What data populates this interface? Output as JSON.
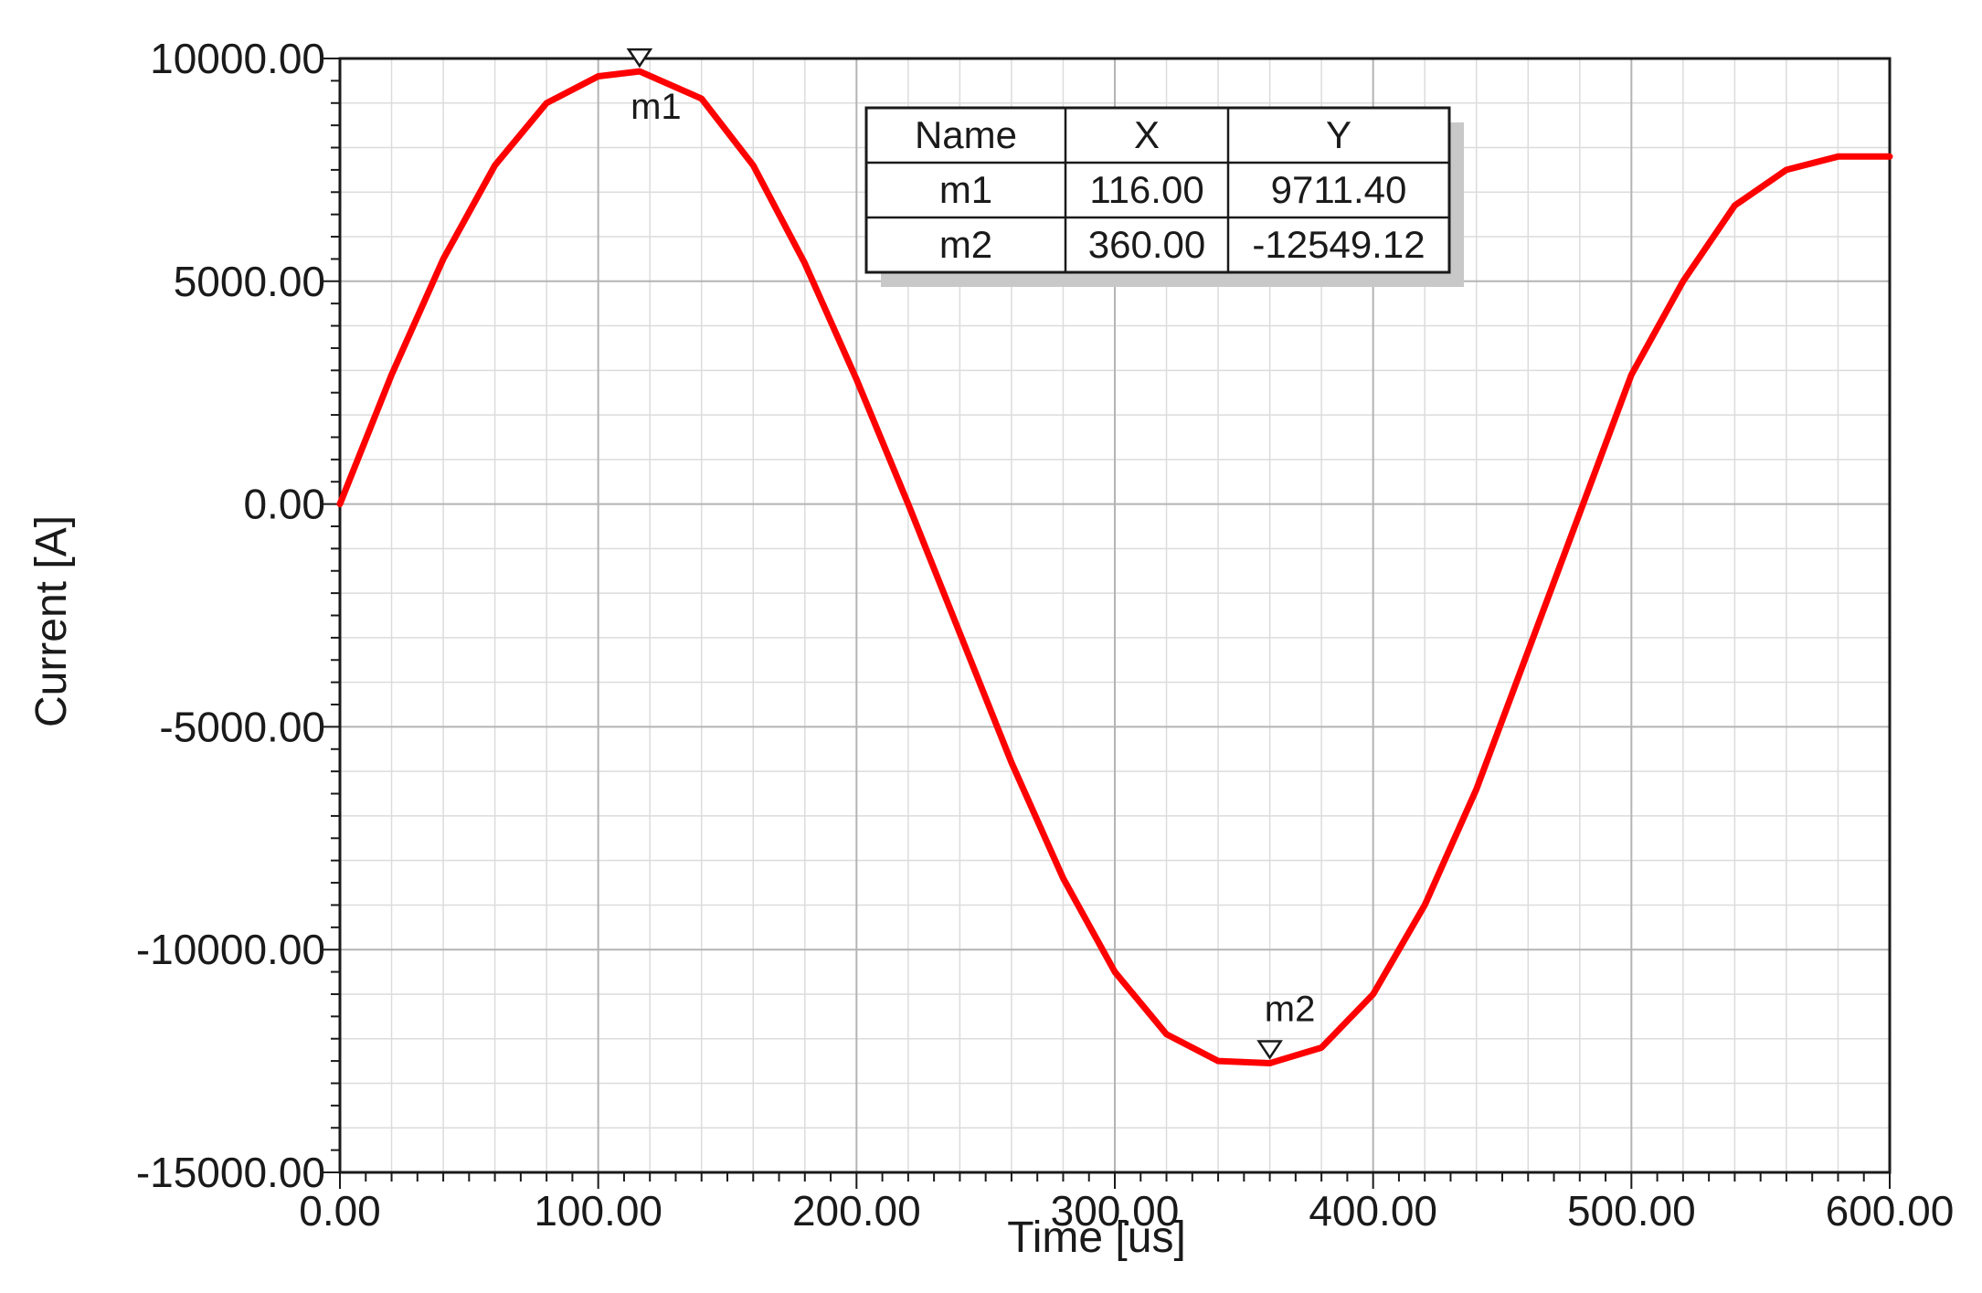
{
  "chart_data": {
    "type": "line",
    "xlabel": "Time [us]",
    "ylabel": "Current [A]",
    "xlim": [
      0,
      600
    ],
    "ylim": [
      -15000,
      10000
    ],
    "x_ticks": [
      "0.00",
      "100.00",
      "200.00",
      "300.00",
      "400.00",
      "500.00",
      "600.00"
    ],
    "y_ticks": [
      "10000.00",
      "5000.00",
      "0.00",
      "-5000.00",
      "-10000.00",
      "-15000.00"
    ],
    "x_tick_values": [
      0,
      100,
      200,
      300,
      400,
      500,
      600
    ],
    "y_tick_values": [
      10000,
      5000,
      0,
      -5000,
      -10000,
      -15000
    ],
    "grid": true,
    "series": [
      {
        "color": "#ff0000",
        "x": [
          0,
          20,
          40,
          60,
          80,
          100,
          116,
          140,
          160,
          180,
          200,
          220,
          240,
          260,
          280,
          300,
          320,
          340,
          360,
          380,
          400,
          420,
          440,
          460,
          480,
          500,
          520,
          540,
          560,
          580,
          595,
          600
        ],
        "y": [
          0,
          2900,
          5500,
          7600,
          9000,
          9600,
          9711.4,
          9100,
          7600,
          5400,
          2800,
          0,
          -2900,
          -5800,
          -8400,
          -10500,
          -11900,
          -12500,
          -12549.12,
          -12200,
          -11000,
          -9000,
          -6400,
          -3300,
          -200,
          2900,
          5000,
          6700,
          7500,
          7800,
          7800,
          7800
        ]
      }
    ],
    "markers": [
      {
        "name": "m1",
        "x": 116.0,
        "y": 9711.4,
        "x_text": "116.00",
        "y_text": "9711.40"
      },
      {
        "name": "m2",
        "x": 360.0,
        "y": -12549.12,
        "x_text": "360.00",
        "y_text": "-12549.12"
      }
    ],
    "marker_table": {
      "headers": [
        "Name",
        "X",
        "Y"
      ],
      "rows": [
        [
          "m1",
          "116.00",
          "9711.40"
        ],
        [
          "m2",
          "360.00",
          "-12549.12"
        ]
      ]
    }
  }
}
